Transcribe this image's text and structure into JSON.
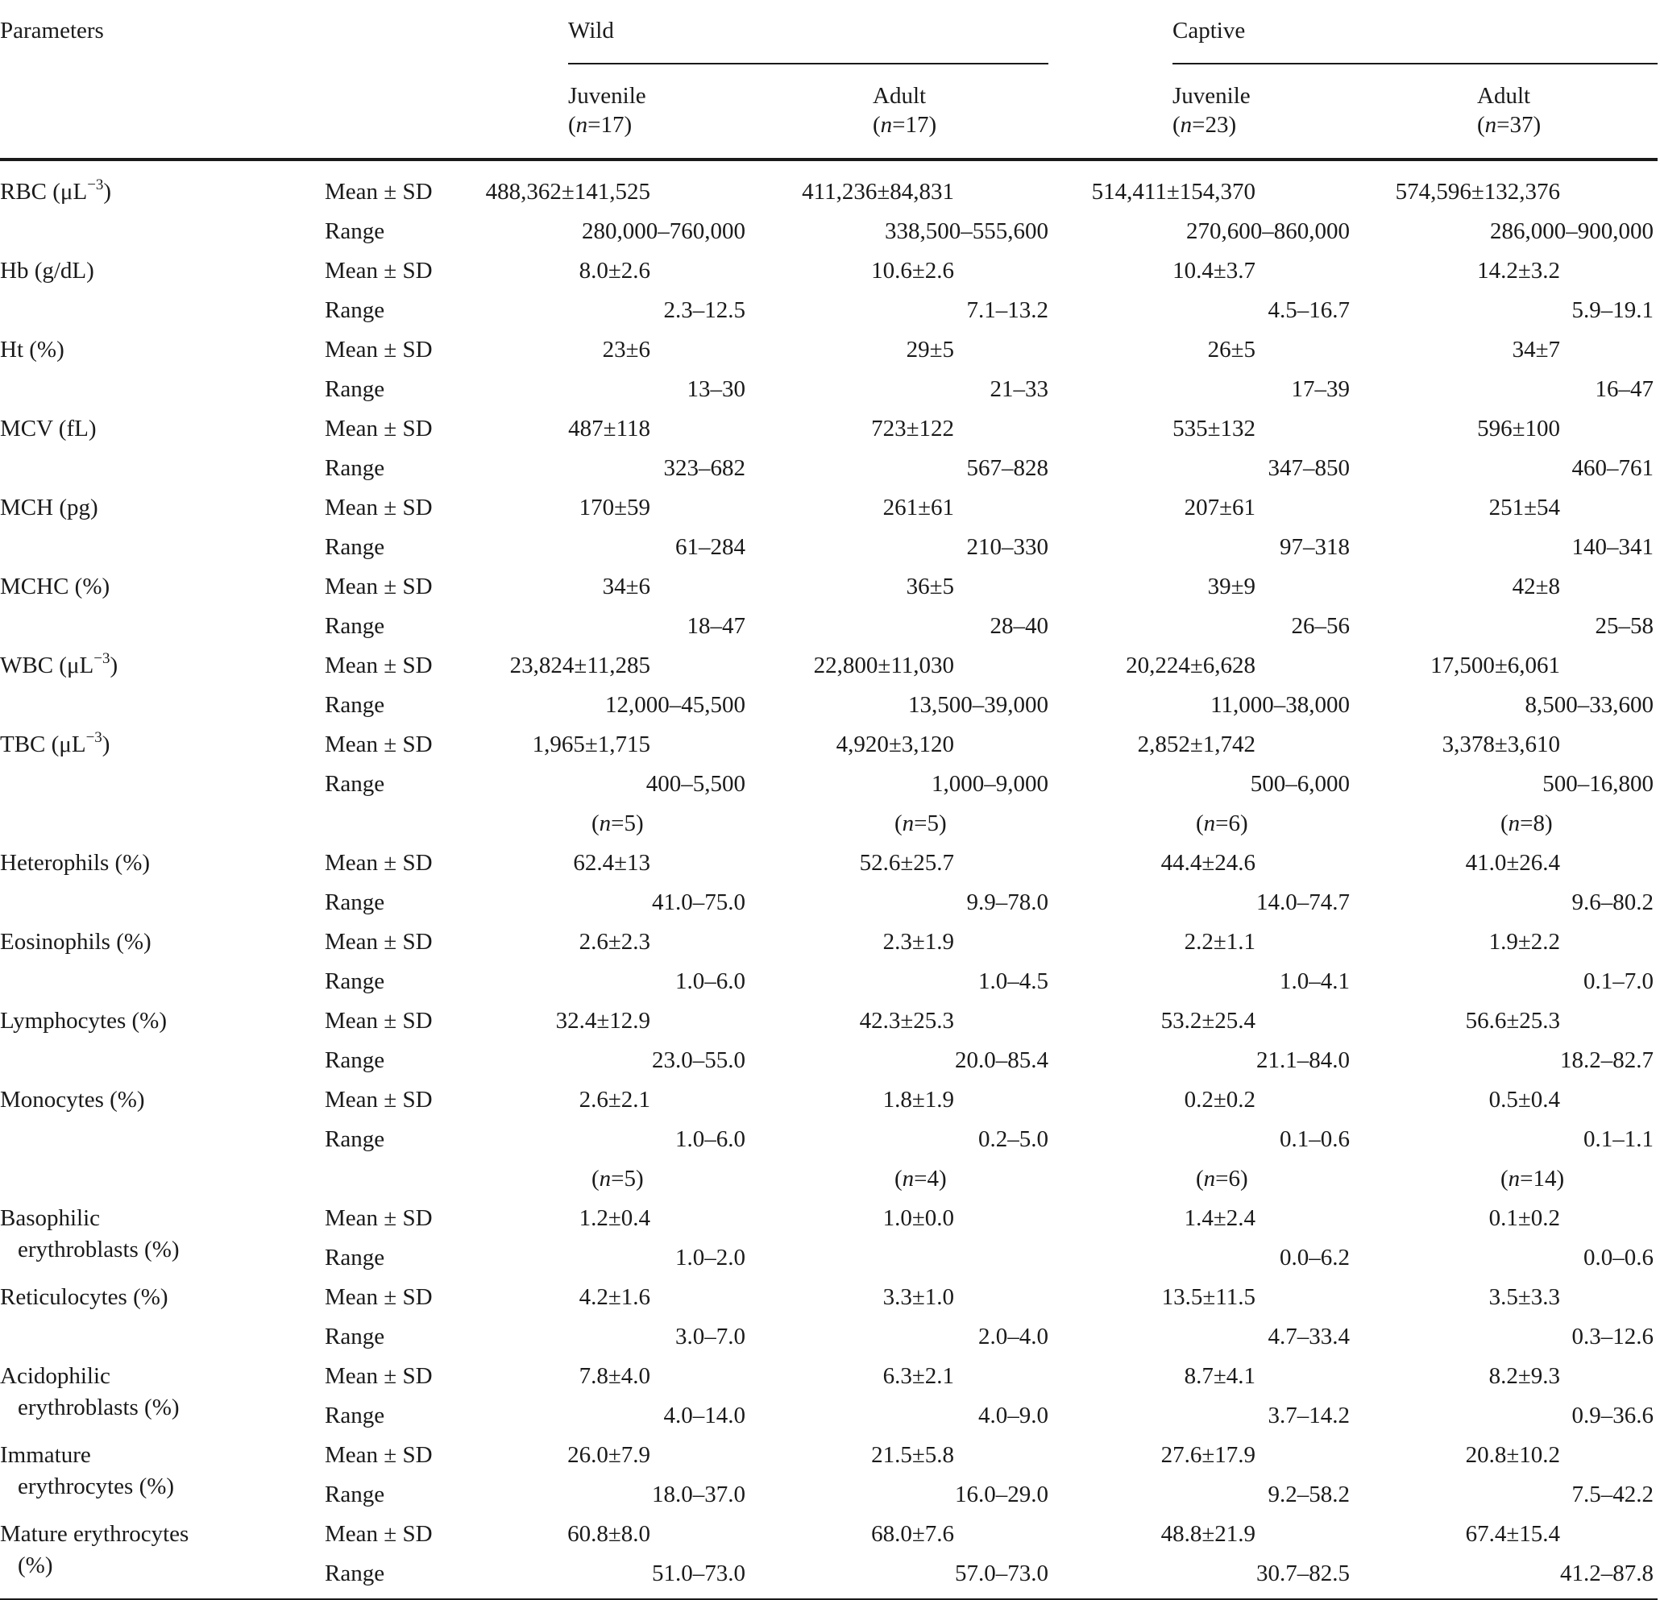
{
  "header": {
    "parameters": "Parameters",
    "wild": "Wild",
    "captive": "Captive",
    "juvenile": "Juvenile",
    "adult": "Adult",
    "n_wild_juvenile": "17",
    "n_wild_adult": "17",
    "n_captive_juvenile": "23",
    "n_captive_adult": "37"
  },
  "stats": {
    "mean": "Mean ± SD",
    "range": "Range"
  },
  "rows": [
    {
      "label": "RBC (μL",
      "sup": "−3",
      "label_end": ")",
      "mean": [
        "488,362±141,525",
        "411,236±84,831",
        "514,411±154,370",
        "574,596±132,376"
      ],
      "range": [
        "280,000–760,000",
        "338,500–555,600",
        "270,600–860,000",
        "286,000–900,000"
      ]
    },
    {
      "label": "Hb (g/dL)",
      "mean": [
        "8.0±2.6",
        "10.6±2.6",
        "10.4±3.7",
        "14.2±3.2"
      ],
      "range": [
        "2.3–12.5",
        "7.1–13.2",
        "4.5–16.7",
        "5.9–19.1"
      ]
    },
    {
      "label": "Ht (%)",
      "mean": [
        "23±6",
        "29±5",
        "26±5",
        "34±7"
      ],
      "range": [
        "13–30",
        "21–33",
        "17–39",
        "16–47"
      ]
    },
    {
      "label": "MCV (fL)",
      "mean": [
        "487±118",
        "723±122",
        "535±132",
        "596±100"
      ],
      "range": [
        "323–682",
        "567–828",
        "347–850",
        "460–761"
      ]
    },
    {
      "label": "MCH (pg)",
      "mean": [
        "170±59",
        "261±61",
        "207±61",
        "251±54"
      ],
      "range": [
        "61–284",
        "210–330",
        "97–318",
        "140–341"
      ]
    },
    {
      "label": "MCHC (%)",
      "mean": [
        "34±6",
        "36±5",
        "39±9",
        "42±8"
      ],
      "range": [
        "18–47",
        "28–40",
        "26–56",
        "25–58"
      ]
    },
    {
      "label": "WBC (μL",
      "sup": "−3",
      "label_end": ")",
      "mean": [
        "23,824±11,285",
        "22,800±11,030",
        "20,224±6,628",
        "17,500±6,061"
      ],
      "range": [
        "12,000–45,500",
        "13,500–39,000",
        "11,000–38,000",
        "8,500–33,600"
      ]
    },
    {
      "label": "TBC (μL",
      "sup": "−3",
      "label_end": ")",
      "mean": [
        "1,965±1,715",
        "4,920±3,120",
        "2,852±1,742",
        "3,378±3,610"
      ],
      "range": [
        "400–5,500",
        "1,000–9,000",
        "500–6,000",
        "500–16,800"
      ]
    },
    {
      "label": "Heterophils (%)",
      "mean": [
        "62.4±13",
        "52.6±25.7",
        "44.4±24.6",
        "41.0±26.4"
      ],
      "range": [
        "41.0–75.0",
        "9.9–78.0",
        "14.0–74.7",
        "9.6–80.2"
      ]
    },
    {
      "label": "Eosinophils (%)",
      "mean": [
        "2.6±2.3",
        "2.3±1.9",
        "2.2±1.1",
        "1.9±2.2"
      ],
      "range": [
        "1.0–6.0",
        "1.0–4.5",
        "1.0–4.1",
        "0.1–7.0"
      ]
    },
    {
      "label": "Lymphocytes (%)",
      "mean": [
        "32.4±12.9",
        "42.3±25.3",
        "53.2±25.4",
        "56.6±25.3"
      ],
      "range": [
        "23.0–55.0",
        "20.0–85.4",
        "21.1–84.0",
        "18.2–82.7"
      ]
    },
    {
      "label": "Monocytes (%)",
      "mean": [
        "2.6±2.1",
        "1.8±1.9",
        "0.2±0.2",
        "0.5±0.4"
      ],
      "range": [
        "1.0–6.0",
        "0.2–5.0",
        "0.1–0.6",
        "0.1–1.1"
      ]
    },
    {
      "label": "Basophilic",
      "label2": "erythroblasts (%)",
      "mean": [
        "1.2±0.4",
        "1.0±0.0",
        "1.4±2.4",
        "0.1±0.2"
      ],
      "range": [
        "1.0–2.0",
        "",
        "0.0–6.2",
        "0.0–0.6"
      ]
    },
    {
      "label": "Reticulocytes (%)",
      "mean": [
        "4.2±1.6",
        "3.3±1.0",
        "13.5±11.5",
        "3.5±3.3"
      ],
      "range": [
        "3.0–7.0",
        "2.0–4.0",
        "4.7–33.4",
        "0.3–12.6"
      ]
    },
    {
      "label": "Acidophilic",
      "label2": "erythroblasts (%)",
      "mean": [
        "7.8±4.0",
        "6.3±2.1",
        "8.7±4.1",
        "8.2±9.3"
      ],
      "range": [
        "4.0–14.0",
        "4.0–9.0",
        "3.7–14.2",
        "0.9–36.6"
      ]
    },
    {
      "label": "Immature",
      "label2": "erythrocytes (%)",
      "mean": [
        "26.0±7.9",
        "21.5±5.8",
        "27.6±17.9",
        "20.8±10.2"
      ],
      "range": [
        "18.0–37.0",
        "16.0–29.0",
        "9.2–58.2",
        "7.5–42.2"
      ]
    },
    {
      "label": "Mature erythrocytes",
      "label2": "(%)",
      "mean": [
        "60.8±8.0",
        "68.0±7.6",
        "48.8±21.9",
        "67.4±15.4"
      ],
      "range": [
        "51.0–73.0",
        "57.0–73.0",
        "30.7–82.5",
        "41.2–87.8"
      ]
    }
  ],
  "sample_sizes": [
    {
      "after_row": 8,
      "values": [
        "5",
        "5",
        "6",
        "8"
      ]
    },
    {
      "after_row": 12,
      "values": [
        "5",
        "4",
        "6",
        "14"
      ]
    }
  ]
}
